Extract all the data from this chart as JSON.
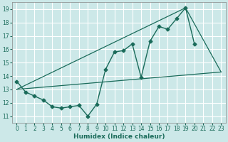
{
  "xlabel": "Humidex (Indice chaleur)",
  "bg_color": "#cce8e8",
  "line_color": "#1a6b5a",
  "grid_color": "#ffffff",
  "xlim": [
    -0.5,
    23.5
  ],
  "ylim": [
    10.5,
    19.5
  ],
  "yticks": [
    11,
    12,
    13,
    14,
    15,
    16,
    17,
    18,
    19
  ],
  "xticks": [
    0,
    1,
    2,
    3,
    4,
    5,
    6,
    7,
    8,
    9,
    10,
    11,
    12,
    13,
    14,
    15,
    16,
    17,
    18,
    19,
    20,
    21,
    22,
    23
  ],
  "series1_x": [
    0,
    1,
    2,
    3,
    4,
    5,
    6,
    7,
    8,
    9,
    10,
    11,
    12,
    13,
    14,
    15,
    16,
    17,
    18,
    19,
    20
  ],
  "series1_y": [
    13.6,
    12.8,
    12.5,
    12.2,
    11.7,
    11.6,
    11.7,
    11.8,
    11.0,
    11.9,
    14.5,
    15.8,
    15.9,
    16.4,
    13.9,
    16.6,
    17.7,
    17.5,
    18.3,
    19.1,
    16.4
  ],
  "series2_x": [
    0,
    23
  ],
  "series2_y": [
    13.0,
    14.3
  ],
  "series3_x": [
    0,
    19,
    23
  ],
  "series3_y": [
    13.0,
    19.1,
    14.3
  ]
}
